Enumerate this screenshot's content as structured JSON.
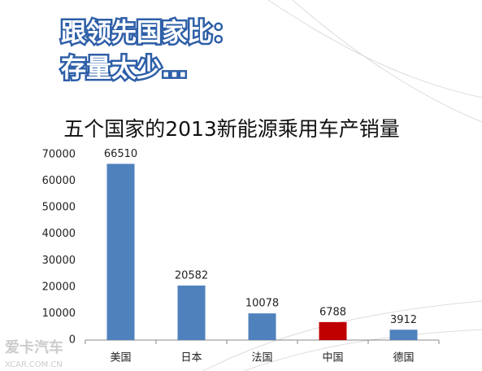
{
  "slide_heading": [
    "跟领先国家比：",
    "存量太少…"
  ],
  "watermark": [
    "爱卡汽车",
    "XCAR.COM.CN"
  ],
  "chart_data": {
    "type": "bar",
    "title": "五个国家的2013新能源乘用车产销量",
    "categories": [
      "美国",
      "日本",
      "法国",
      "中国",
      "德国"
    ],
    "values": [
      66510,
      20582,
      10078,
      6788,
      3912
    ],
    "colors": [
      "#4f81bd",
      "#4f81bd",
      "#4f81bd",
      "#c00000",
      "#4f81bd"
    ],
    "ylim": [
      0,
      70000
    ],
    "yticks": [
      0,
      10000,
      20000,
      30000,
      40000,
      50000,
      60000,
      70000
    ],
    "grid": false
  }
}
